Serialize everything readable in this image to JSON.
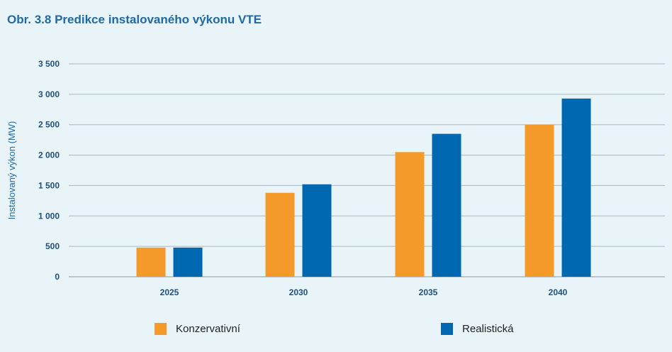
{
  "chart_data": {
    "type": "bar",
    "title": "Obr. 3.8 Predikce instalovaného výkonu VTE",
    "xlabel": "",
    "ylabel": "Instalovaný výkon (MW)",
    "categories": [
      "2025",
      "2030",
      "2035",
      "2040"
    ],
    "series": [
      {
        "name": "Konzervativní",
        "color": "#f39a2b",
        "values": [
          480,
          1380,
          2050,
          2500
        ]
      },
      {
        "name": "Realistická",
        "color": "#0067b1",
        "values": [
          480,
          1520,
          2350,
          2930
        ]
      }
    ],
    "ylim": [
      0,
      3500
    ],
    "yticks": [
      0,
      500,
      1000,
      1500,
      2000,
      2500,
      3000,
      3500
    ],
    "ytick_labels": [
      "0",
      "500",
      "1 000",
      "1 500",
      "2 000",
      "2 500",
      "3 000",
      "3 500"
    ],
    "grid": true,
    "legend_position": "bottom"
  }
}
